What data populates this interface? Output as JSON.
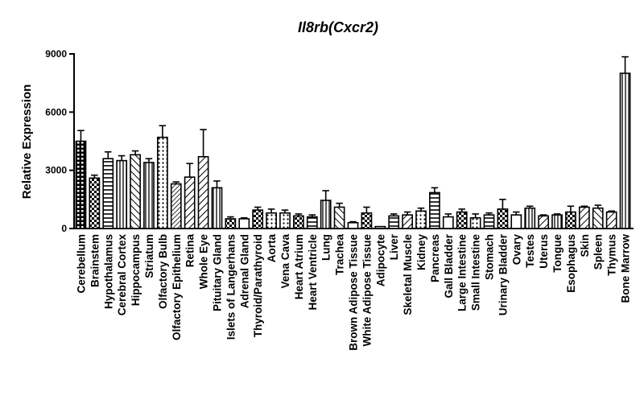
{
  "chart_data": {
    "type": "bar",
    "title": "Il8rb(Cxcr2)",
    "xlabel": "",
    "ylabel": "Relative Expression",
    "ylim": [
      0,
      9000
    ],
    "yticks": [
      0,
      3000,
      6000,
      9000
    ],
    "grid": false,
    "legend": "none",
    "error_bars": true,
    "categories": [
      "Cerebellum",
      "Brainstem",
      "Hypothalamus",
      "Cerebral Cortex",
      "Hippocampus",
      "Striatum",
      "Olfactory Bulb",
      "Olfactory Epithelium",
      "Retina",
      "Whole Eye",
      "Pituitary Gland",
      "Islets of Langerhans",
      "Adrenal Gland",
      "Thyroid/Parathyroid",
      "Aorta",
      "Vena Cava",
      "Heart Atrium",
      "Heart Ventricle",
      "Lung",
      "Trachea",
      "Brown Adipose Tissue",
      "White Adipose Tissue",
      "Adipocyte",
      "Liver",
      "Skeletal Muscle",
      "Kidney",
      "Pancreas",
      "Gall Bladder",
      "Large Intestine",
      "Small Intestine",
      "Stomach",
      "Urinary Bladder",
      "Ovary",
      "Testes",
      "Uterus",
      "Tongue",
      "Esophagus",
      "Skin",
      "Spleen",
      "Thymus",
      "Bone Marrow"
    ],
    "values": [
      4500,
      2600,
      3600,
      3500,
      3800,
      3400,
      4700,
      2300,
      2650,
      3700,
      2100,
      500,
      500,
      950,
      800,
      800,
      650,
      600,
      1450,
      1100,
      300,
      800,
      100,
      650,
      700,
      900,
      1850,
      600,
      850,
      550,
      700,
      1000,
      700,
      1050,
      650,
      700,
      850,
      1100,
      1050,
      850,
      8000
    ],
    "errors": [
      550,
      150,
      350,
      250,
      200,
      200,
      600,
      100,
      700,
      1400,
      350,
      100,
      50,
      150,
      200,
      150,
      100,
      100,
      500,
      200,
      50,
      300,
      0,
      100,
      150,
      150,
      250,
      150,
      150,
      200,
      100,
      500,
      150,
      100,
      50,
      50,
      300,
      50,
      150,
      50,
      850
    ],
    "patterns": [
      "crosshatch",
      "checker",
      "hlines",
      "vlines",
      "diag-back",
      "vlines",
      "dots",
      "diag-dense",
      "diag",
      "diag",
      "vlines",
      "checker",
      "blank",
      "checker",
      "dots",
      "dots",
      "checker",
      "hlines",
      "vlines",
      "diag-back",
      "blank",
      "checker",
      "blank",
      "hlines",
      "diag",
      "dots",
      "hlines",
      "blank",
      "checker",
      "dots",
      "hlines",
      "checker",
      "blank",
      "vlines",
      "diag",
      "vlines",
      "checker",
      "diag",
      "diag-back",
      "diag",
      "vlines"
    ]
  }
}
